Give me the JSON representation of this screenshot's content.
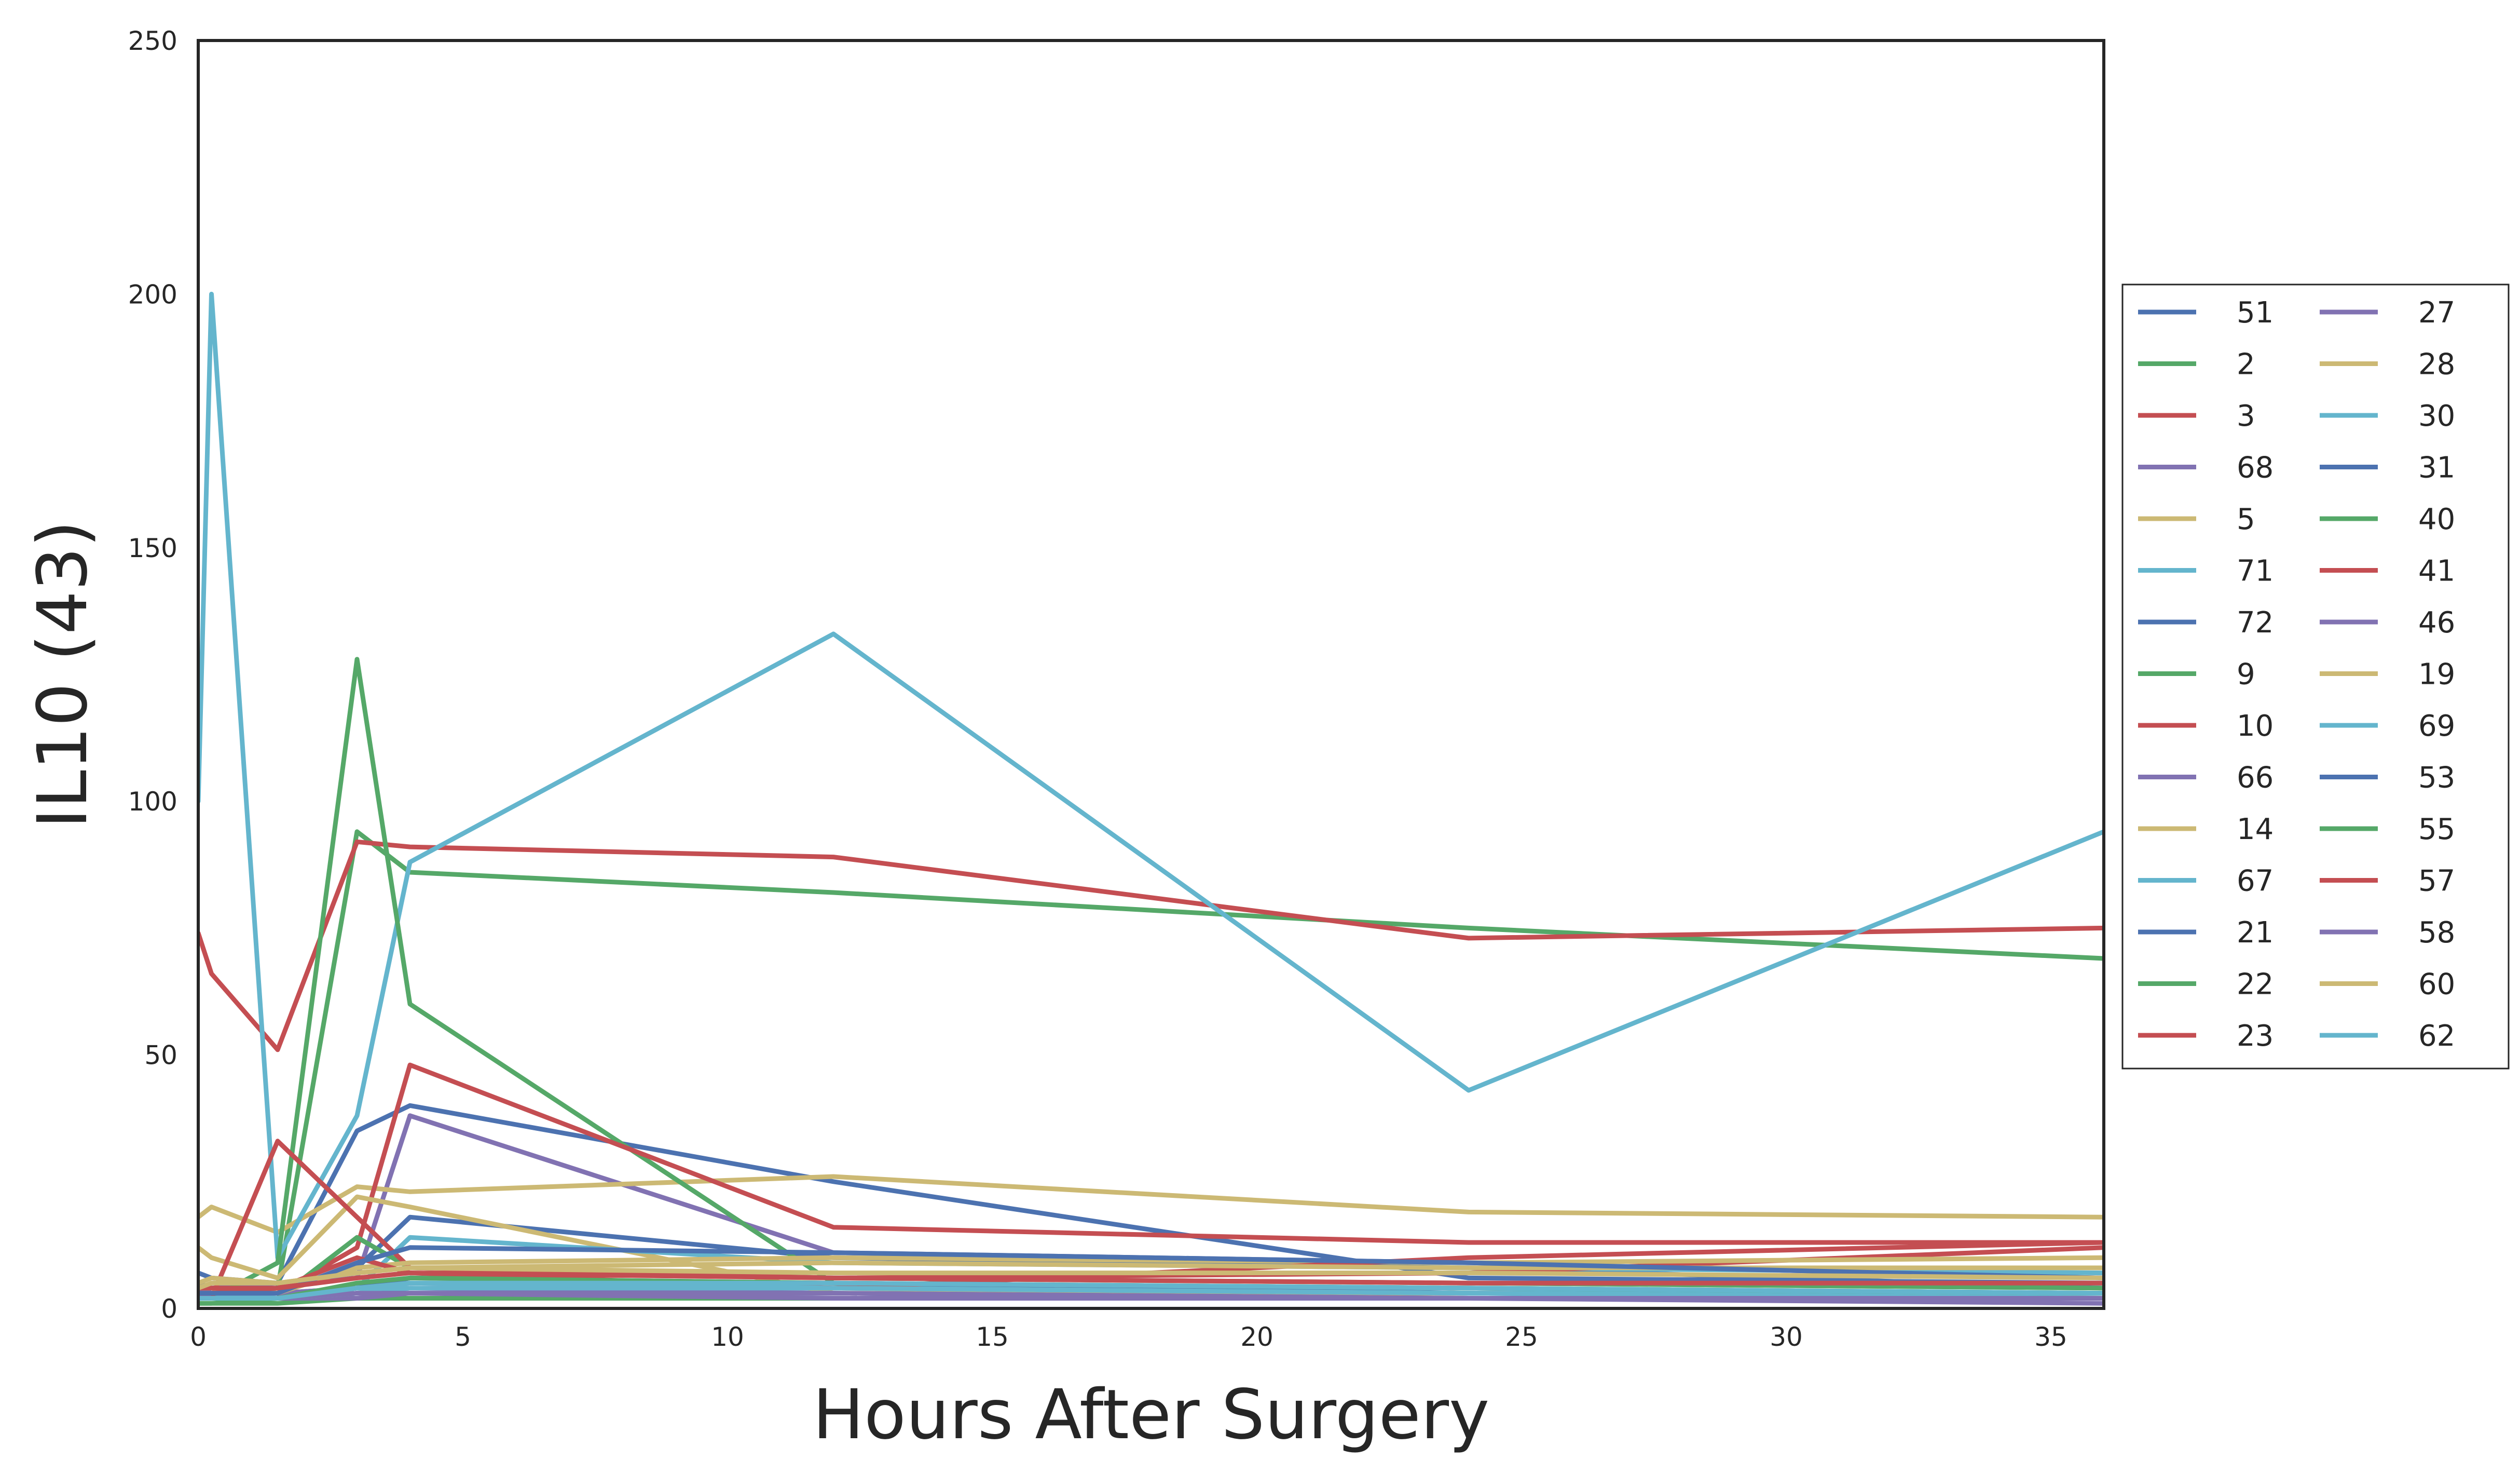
{
  "chart_data": {
    "type": "line",
    "title": "",
    "xlabel": "Hours After Surgery",
    "ylabel": "IL10 (43)",
    "xlim": [
      0,
      36
    ],
    "ylim": [
      0,
      250
    ],
    "xticks": [
      0,
      5,
      10,
      15,
      20,
      25,
      30,
      35
    ],
    "yticks": [
      0,
      50,
      100,
      150,
      200,
      250
    ],
    "grid": false,
    "legend_position": "right",
    "legend_columns": 2,
    "palette": [
      "#4c72b0",
      "#55a868",
      "#c44e52",
      "#8172b2",
      "#ccb974",
      "#64b5cd"
    ],
    "series": [
      {
        "name": "51",
        "color": "#4c72b0",
        "x": [
          0,
          0.25,
          1.5,
          3,
          4,
          12,
          24,
          36
        ],
        "y": [
          7,
          6,
          5,
          35,
          40,
          25,
          6,
          5
        ]
      },
      {
        "name": "2",
        "color": "#55a868",
        "x": [
          0,
          0.25,
          1.5,
          3,
          4,
          12,
          24,
          36
        ],
        "y": [
          2,
          3,
          4,
          94,
          86,
          82,
          75,
          69
        ]
      },
      {
        "name": "3",
        "color": "#c44e52",
        "x": [
          0,
          0.25,
          1.5,
          3,
          4,
          12,
          24,
          36
        ],
        "y": [
          74,
          66,
          51,
          92,
          91,
          89,
          73,
          75
        ]
      },
      {
        "name": "68",
        "color": "#8172b2",
        "x": [
          0,
          0.25,
          1.5,
          3,
          4,
          12,
          24,
          36
        ],
        "y": [
          3,
          4,
          5,
          6,
          38,
          11,
          9,
          6
        ]
      },
      {
        "name": "5",
        "color": "#ccb974",
        "x": [
          0,
          0.25,
          1.5,
          3,
          4,
          12,
          24,
          36
        ],
        "y": [
          18,
          20,
          15,
          24,
          23,
          26,
          19,
          18
        ]
      },
      {
        "name": "71",
        "color": "#64b5cd",
        "x": [
          0,
          0.25,
          1.5,
          3,
          4,
          12,
          24,
          36
        ],
        "y": [
          100,
          200,
          10,
          38,
          88,
          133,
          43,
          94
        ]
      },
      {
        "name": "72",
        "color": "#4c72b0",
        "x": [
          0,
          0.25,
          1.5,
          3,
          4,
          12,
          24,
          36
        ],
        "y": [
          5,
          4,
          4,
          8,
          18,
          10,
          8,
          4
        ]
      },
      {
        "name": "9",
        "color": "#55a868",
        "x": [
          0,
          0.25,
          1.5,
          3,
          4,
          12,
          24,
          36
        ],
        "y": [
          2,
          2,
          9,
          128,
          60,
          5,
          4,
          3
        ]
      },
      {
        "name": "10",
        "color": "#c44e52",
        "x": [
          0,
          0.25,
          1.5,
          3,
          4,
          12,
          24,
          36
        ],
        "y": [
          4,
          4,
          3,
          12,
          48,
          16,
          13,
          13
        ]
      },
      {
        "name": "66",
        "color": "#8172b2",
        "x": [
          0,
          0.25,
          1.5,
          3,
          4,
          12,
          24,
          36
        ],
        "y": [
          2,
          2,
          2,
          3,
          4,
          3,
          2,
          2
        ]
      },
      {
        "name": "14",
        "color": "#ccb974",
        "x": [
          0,
          0.25,
          1.5,
          3,
          4,
          12,
          24,
          36
        ],
        "y": [
          12,
          10,
          6,
          22,
          20,
          3,
          3,
          3
        ]
      },
      {
        "name": "67",
        "color": "#64b5cd",
        "x": [
          0,
          0.25,
          1.5,
          3,
          4,
          12,
          24,
          36
        ],
        "y": [
          3,
          3,
          2,
          4,
          14,
          9,
          8,
          7
        ]
      },
      {
        "name": "21",
        "color": "#4c72b0",
        "x": [
          0,
          0.25,
          1.5,
          3,
          4,
          12,
          24,
          36
        ],
        "y": [
          3,
          3,
          3,
          4,
          6,
          5,
          3,
          2
        ]
      },
      {
        "name": "22",
        "color": "#55a868",
        "x": [
          0,
          0.25,
          1.5,
          3,
          4,
          12,
          24,
          36
        ],
        "y": [
          1,
          1,
          2,
          14,
          8,
          6,
          5,
          4
        ]
      },
      {
        "name": "23",
        "color": "#c44e52",
        "x": [
          0,
          0.25,
          1.5,
          3,
          4,
          12,
          24,
          36
        ],
        "y": [
          2,
          2,
          33,
          18,
          8,
          6,
          7,
          12
        ]
      },
      {
        "name": "27",
        "color": "#8172b2",
        "x": [
          0,
          0.25,
          1.5,
          3,
          4,
          12,
          24,
          36
        ],
        "y": [
          2,
          3,
          3,
          4,
          5,
          4,
          3,
          3
        ]
      },
      {
        "name": "28",
        "color": "#ccb974",
        "x": [
          0,
          0.25,
          1.5,
          3,
          4,
          12,
          24,
          36
        ],
        "y": [
          4,
          4,
          3,
          8,
          9,
          10,
          9,
          10
        ]
      },
      {
        "name": "30",
        "color": "#64b5cd",
        "x": [
          0,
          0.25,
          1.5,
          3,
          4,
          12,
          24,
          36
        ],
        "y": [
          2,
          2,
          2,
          3,
          4,
          4,
          3,
          3
        ]
      },
      {
        "name": "31",
        "color": "#4c72b0",
        "x": [
          0,
          0.25,
          1.5,
          3,
          4,
          12,
          24,
          36
        ],
        "y": [
          2,
          2,
          2,
          3,
          3,
          3,
          2,
          2
        ]
      },
      {
        "name": "40",
        "color": "#55a868",
        "x": [
          0,
          0.25,
          1.5,
          3,
          4,
          12,
          24,
          36
        ],
        "y": [
          1,
          1,
          1,
          2,
          2,
          2,
          2,
          2
        ]
      },
      {
        "name": "41",
        "color": "#c44e52",
        "x": [
          0,
          0.25,
          1.5,
          3,
          4,
          12,
          24,
          36
        ],
        "y": [
          3,
          3,
          4,
          10,
          7,
          4,
          10,
          13
        ]
      },
      {
        "name": "46",
        "color": "#8172b2",
        "x": [
          0,
          0.25,
          1.5,
          3,
          4,
          12,
          24,
          36
        ],
        "y": [
          2,
          2,
          2,
          2,
          3,
          2,
          2,
          1
        ]
      },
      {
        "name": "19",
        "color": "#ccb974",
        "x": [
          0,
          0.25,
          1.5,
          3,
          4,
          12,
          24,
          36
        ],
        "y": [
          5,
          6,
          5,
          7,
          8,
          9,
          8,
          8
        ]
      },
      {
        "name": "69",
        "color": "#64b5cd",
        "x": [
          0,
          0.25,
          1.5,
          3,
          4,
          12,
          24,
          36
        ],
        "y": [
          2,
          2,
          2,
          3,
          5,
          4,
          3,
          2
        ]
      },
      {
        "name": "53",
        "color": "#4c72b0",
        "x": [
          0,
          0.25,
          1.5,
          3,
          4,
          12,
          24,
          36
        ],
        "y": [
          3,
          3,
          3,
          9,
          12,
          11,
          9,
          6
        ]
      },
      {
        "name": "55",
        "color": "#55a868",
        "x": [
          0,
          0.25,
          1.5,
          3,
          4,
          12,
          24,
          36
        ],
        "y": [
          2,
          2,
          2,
          5,
          6,
          5,
          4,
          3
        ]
      },
      {
        "name": "57",
        "color": "#c44e52",
        "x": [
          0,
          0.25,
          1.5,
          3,
          4,
          12,
          24,
          36
        ],
        "y": [
          4,
          4,
          4,
          6,
          7,
          6,
          5,
          5
        ]
      },
      {
        "name": "58",
        "color": "#8172b2",
        "x": [
          0,
          0.25,
          1.5,
          3,
          4,
          12,
          24,
          36
        ],
        "y": [
          2,
          2,
          2,
          3,
          3,
          3,
          2,
          2
        ]
      },
      {
        "name": "60",
        "color": "#ccb974",
        "x": [
          0,
          0.25,
          1.5,
          3,
          4,
          12,
          24,
          36
        ],
        "y": [
          4,
          5,
          5,
          7,
          8,
          7,
          7,
          6
        ]
      },
      {
        "name": "62",
        "color": "#64b5cd",
        "x": [
          0,
          0.25,
          1.5,
          3,
          4,
          12,
          24,
          36
        ],
        "y": [
          2,
          2,
          2,
          4,
          5,
          5,
          4,
          3
        ]
      }
    ]
  }
}
